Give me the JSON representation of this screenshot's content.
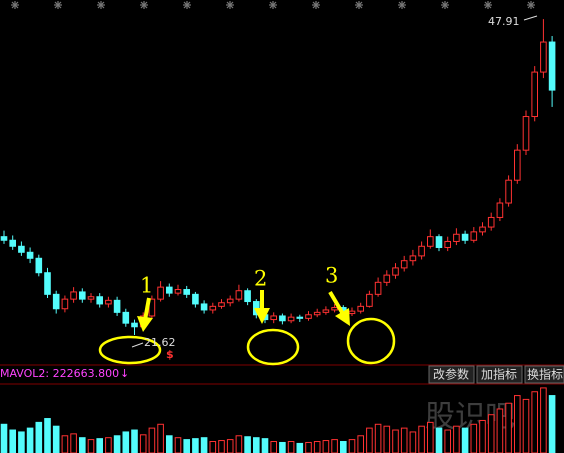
{
  "chart_data": {
    "type": "candlestick",
    "candles": [
      [
        29.8,
        30.3,
        29.2,
        29.5
      ],
      [
        29.5,
        29.9,
        28.7,
        29.0
      ],
      [
        29.0,
        29.4,
        28.2,
        28.5
      ],
      [
        28.5,
        28.9,
        27.6,
        28.0
      ],
      [
        28.0,
        28.3,
        26.5,
        26.8
      ],
      [
        26.8,
        27.2,
        24.7,
        25.0
      ],
      [
        25.0,
        25.3,
        23.4,
        23.8
      ],
      [
        23.8,
        24.9,
        23.5,
        24.6
      ],
      [
        24.6,
        25.6,
        24.3,
        25.2
      ],
      [
        25.2,
        25.5,
        24.3,
        24.6
      ],
      [
        24.6,
        25.1,
        24.3,
        24.8
      ],
      [
        24.8,
        25.1,
        23.9,
        24.2
      ],
      [
        24.2,
        24.8,
        23.9,
        24.5
      ],
      [
        24.5,
        24.8,
        23.2,
        23.5
      ],
      [
        23.5,
        23.8,
        22.3,
        22.6
      ],
      [
        22.6,
        22.9,
        21.62,
        22.3
      ],
      [
        22.3,
        23.5,
        22.0,
        23.2
      ],
      [
        23.2,
        24.9,
        23.0,
        24.6
      ],
      [
        24.6,
        26.1,
        24.4,
        25.6
      ],
      [
        25.6,
        25.9,
        24.8,
        25.1
      ],
      [
        25.1,
        25.8,
        24.9,
        25.4
      ],
      [
        25.4,
        25.7,
        24.7,
        25.0
      ],
      [
        25.0,
        25.2,
        23.9,
        24.2
      ],
      [
        24.2,
        24.5,
        23.4,
        23.7
      ],
      [
        23.7,
        24.3,
        23.4,
        24.0
      ],
      [
        24.0,
        24.6,
        23.8,
        24.3
      ],
      [
        24.3,
        24.9,
        24.0,
        24.6
      ],
      [
        24.6,
        25.8,
        24.4,
        25.3
      ],
      [
        25.3,
        25.5,
        24.1,
        24.4
      ],
      [
        24.4,
        24.6,
        23.0,
        23.3
      ],
      [
        23.3,
        23.5,
        22.6,
        22.9
      ],
      [
        22.9,
        23.5,
        22.6,
        23.2
      ],
      [
        23.2,
        23.4,
        22.5,
        22.8
      ],
      [
        22.8,
        23.4,
        22.6,
        23.1
      ],
      [
        23.1,
        23.3,
        22.7,
        23.0
      ],
      [
        23.0,
        23.6,
        22.8,
        23.3
      ],
      [
        23.3,
        23.8,
        23.1,
        23.5
      ],
      [
        23.5,
        24.0,
        23.3,
        23.7
      ],
      [
        23.7,
        24.2,
        23.5,
        23.9
      ],
      [
        23.9,
        24.1,
        23.1,
        23.4
      ],
      [
        23.4,
        23.9,
        23.2,
        23.6
      ],
      [
        23.6,
        24.3,
        23.4,
        24.0
      ],
      [
        24.0,
        25.3,
        23.9,
        25.0
      ],
      [
        25.0,
        26.4,
        24.8,
        26.0
      ],
      [
        26.0,
        27.0,
        25.7,
        26.6
      ],
      [
        26.6,
        27.6,
        26.3,
        27.2
      ],
      [
        27.2,
        28.2,
        26.9,
        27.8
      ],
      [
        27.8,
        28.7,
        27.4,
        28.2
      ],
      [
        28.2,
        29.4,
        27.9,
        29.0
      ],
      [
        29.0,
        30.4,
        28.8,
        29.8
      ],
      [
        29.8,
        30.0,
        28.6,
        28.9
      ],
      [
        28.9,
        29.8,
        28.6,
        29.4
      ],
      [
        29.4,
        30.5,
        29.1,
        30.0
      ],
      [
        30.0,
        30.3,
        29.2,
        29.5
      ],
      [
        29.5,
        30.6,
        29.3,
        30.2
      ],
      [
        30.2,
        31.0,
        29.9,
        30.6
      ],
      [
        30.6,
        31.8,
        30.3,
        31.4
      ],
      [
        31.4,
        33.0,
        31.1,
        32.6
      ],
      [
        32.6,
        34.9,
        32.3,
        34.5
      ],
      [
        34.5,
        37.5,
        34.2,
        37.0
      ],
      [
        37.0,
        40.3,
        36.6,
        39.8
      ],
      [
        39.8,
        44.0,
        39.4,
        43.5
      ],
      [
        43.5,
        47.91,
        43.0,
        46.0
      ],
      [
        46.0,
        46.5,
        40.6,
        42.0
      ]
    ],
    "volumes": [
      150000,
      120000,
      110000,
      130000,
      160000,
      180000,
      140000,
      90000,
      100000,
      80000,
      70000,
      75000,
      80000,
      90000,
      110000,
      120000,
      95000,
      130000,
      150000,
      90000,
      80000,
      70000,
      75000,
      80000,
      60000,
      65000,
      70000,
      90000,
      85000,
      80000,
      75000,
      60000,
      55000,
      60000,
      50000,
      55000,
      60000,
      65000,
      70000,
      60000,
      70000,
      90000,
      130000,
      150000,
      140000,
      120000,
      130000,
      110000,
      140000,
      160000,
      130000,
      120000,
      140000,
      130000,
      150000,
      170000,
      200000,
      230000,
      260000,
      300000,
      280000,
      320000,
      340000,
      300000
    ],
    "ylim": [
      20.2,
      49.0
    ],
    "volume_lim": [
      0,
      350000
    ],
    "up_color": "#ff3232",
    "down_color": "#54fcfc",
    "annotations": [
      "1",
      "2",
      "3"
    ],
    "signal": "$",
    "indicator": "MAVOL2: 222663.800",
    "indicator_arrow": "↓"
  },
  "toolbar": {
    "buttons": [
      "改参数",
      "加指标",
      "换指标"
    ]
  },
  "watermark": "股识吧"
}
